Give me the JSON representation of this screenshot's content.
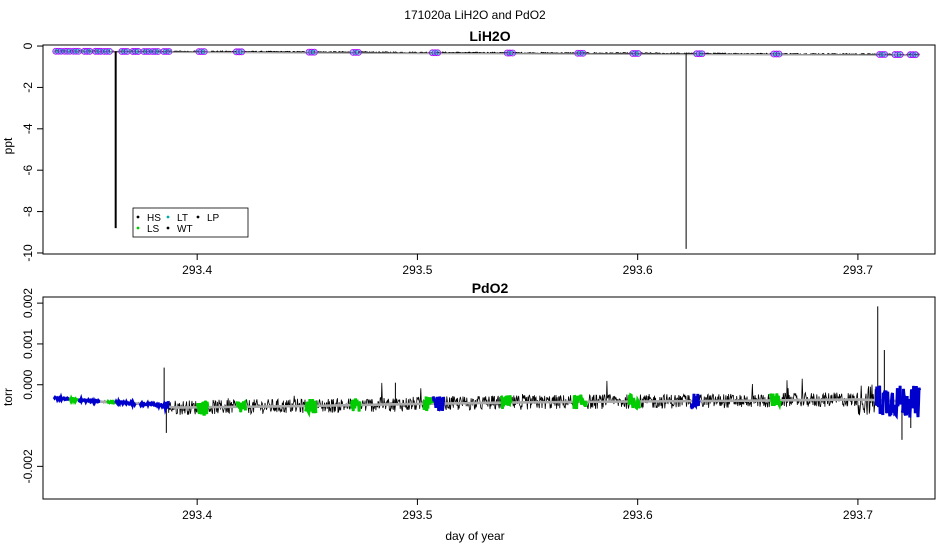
{
  "figure_title": "171020a   LiH2O and PdO2",
  "xlabel": "day of year",
  "chart_data": [
    {
      "type": "line",
      "title": "LiH2O",
      "ylabel": "ppt",
      "xlim": [
        293.33,
        293.735
      ],
      "ylim": [
        -10.05,
        0.05
      ],
      "xticks": [
        293.4,
        293.5,
        293.6,
        293.7
      ],
      "yticks": [
        0,
        -2,
        -4,
        -6,
        -8,
        -10
      ],
      "baseline": {
        "x": [
          293.335,
          293.4,
          293.5,
          293.6,
          293.7,
          293.728
        ],
        "y": [
          -0.25,
          -0.27,
          -0.32,
          -0.36,
          -0.4,
          -0.42
        ]
      },
      "spikes": [
        {
          "x": 293.363,
          "y": -8.8
        },
        {
          "x": 293.622,
          "y": -9.8
        }
      ],
      "mode_points": [
        293.337,
        293.341,
        293.345,
        293.35,
        293.355,
        293.359,
        293.367,
        293.372,
        293.377,
        293.381,
        293.386,
        293.402,
        293.419,
        293.452,
        293.472,
        293.508,
        293.542,
        293.574,
        293.599,
        293.628,
        293.663,
        293.711,
        293.718,
        293.725
      ],
      "legend": [
        "HS",
        "LS",
        "LT",
        "WT",
        "LP"
      ],
      "legend_colors": [
        "#000000",
        "#00cc00",
        "#00aaaa",
        "#000000",
        "#000000"
      ],
      "marker_colors": {
        "outer": "#aa00ff",
        "inner": "#00c0c0"
      },
      "line_color": "#000000",
      "mean_color": "#aaaaaa"
    },
    {
      "type": "line",
      "title": "PdO2",
      "ylabel": "torr",
      "xlim": [
        293.33,
        293.735
      ],
      "ylim": [
        -0.0028,
        0.00215
      ],
      "xticks": [
        293.4,
        293.5,
        293.6,
        293.7
      ],
      "yticks": [
        0.002,
        0.001,
        0.0,
        -0.002
      ],
      "ytick_labels": [
        "0.002",
        "0.001",
        "0.000",
        "-0.002"
      ],
      "trend": {
        "x": [
          293.335,
          293.36,
          293.38,
          293.39,
          293.45,
          293.5,
          293.55,
          293.6,
          293.65,
          293.7,
          293.728
        ],
        "y": [
          -0.00033,
          -0.00043,
          -0.00048,
          -0.00056,
          -0.00052,
          -0.00047,
          -0.00043,
          -0.00041,
          -0.00039,
          -0.00036,
          -0.00042
        ]
      },
      "noise_amplitude": 0.00018,
      "spikes": [
        {
          "x": 293.385,
          "y": 0.00042
        },
        {
          "x": 293.386,
          "y": -0.00118
        },
        {
          "x": 293.49,
          "y": 5e-05
        },
        {
          "x": 293.709,
          "y": 0.00192
        },
        {
          "x": 293.712,
          "y": 0.00085
        },
        {
          "x": 293.72,
          "y": -0.00135
        },
        {
          "x": 293.724,
          "y": -0.00106
        }
      ],
      "color_segments": [
        {
          "x0": 293.335,
          "x1": 293.342,
          "color": "#0000cc"
        },
        {
          "x0": 293.342,
          "x1": 293.346,
          "color": "#00cc00"
        },
        {
          "x0": 293.346,
          "x1": 293.356,
          "color": "#0000cc"
        },
        {
          "x0": 293.359,
          "x1": 293.363,
          "color": "#00cc00"
        },
        {
          "x0": 293.363,
          "x1": 293.372,
          "color": "#0000cc"
        },
        {
          "x0": 293.374,
          "x1": 293.387,
          "color": "#0000cc"
        },
        {
          "x0": 293.4,
          "x1": 293.405,
          "color": "#00cc00"
        },
        {
          "x0": 293.418,
          "x1": 293.422,
          "color": "#00cc00"
        },
        {
          "x0": 293.449,
          "x1": 293.454,
          "color": "#00cc00"
        },
        {
          "x0": 293.47,
          "x1": 293.474,
          "color": "#00cc00"
        },
        {
          "x0": 293.503,
          "x1": 293.507,
          "color": "#00cc00"
        },
        {
          "x0": 293.507,
          "x1": 293.512,
          "color": "#0000cc"
        },
        {
          "x0": 293.538,
          "x1": 293.543,
          "color": "#00cc00"
        },
        {
          "x0": 293.571,
          "x1": 293.577,
          "color": "#00cc00"
        },
        {
          "x0": 293.596,
          "x1": 293.601,
          "color": "#00cc00"
        },
        {
          "x0": 293.624,
          "x1": 293.628,
          "color": "#0000cc"
        },
        {
          "x0": 293.66,
          "x1": 293.665,
          "color": "#00cc00"
        },
        {
          "x0": 293.708,
          "x1": 293.72,
          "color": "#0000cc"
        },
        {
          "x0": 293.72,
          "x1": 293.728,
          "color": "#0000cc"
        }
      ],
      "line_color": "#000000",
      "mean_color": "#aaaaaa"
    }
  ]
}
